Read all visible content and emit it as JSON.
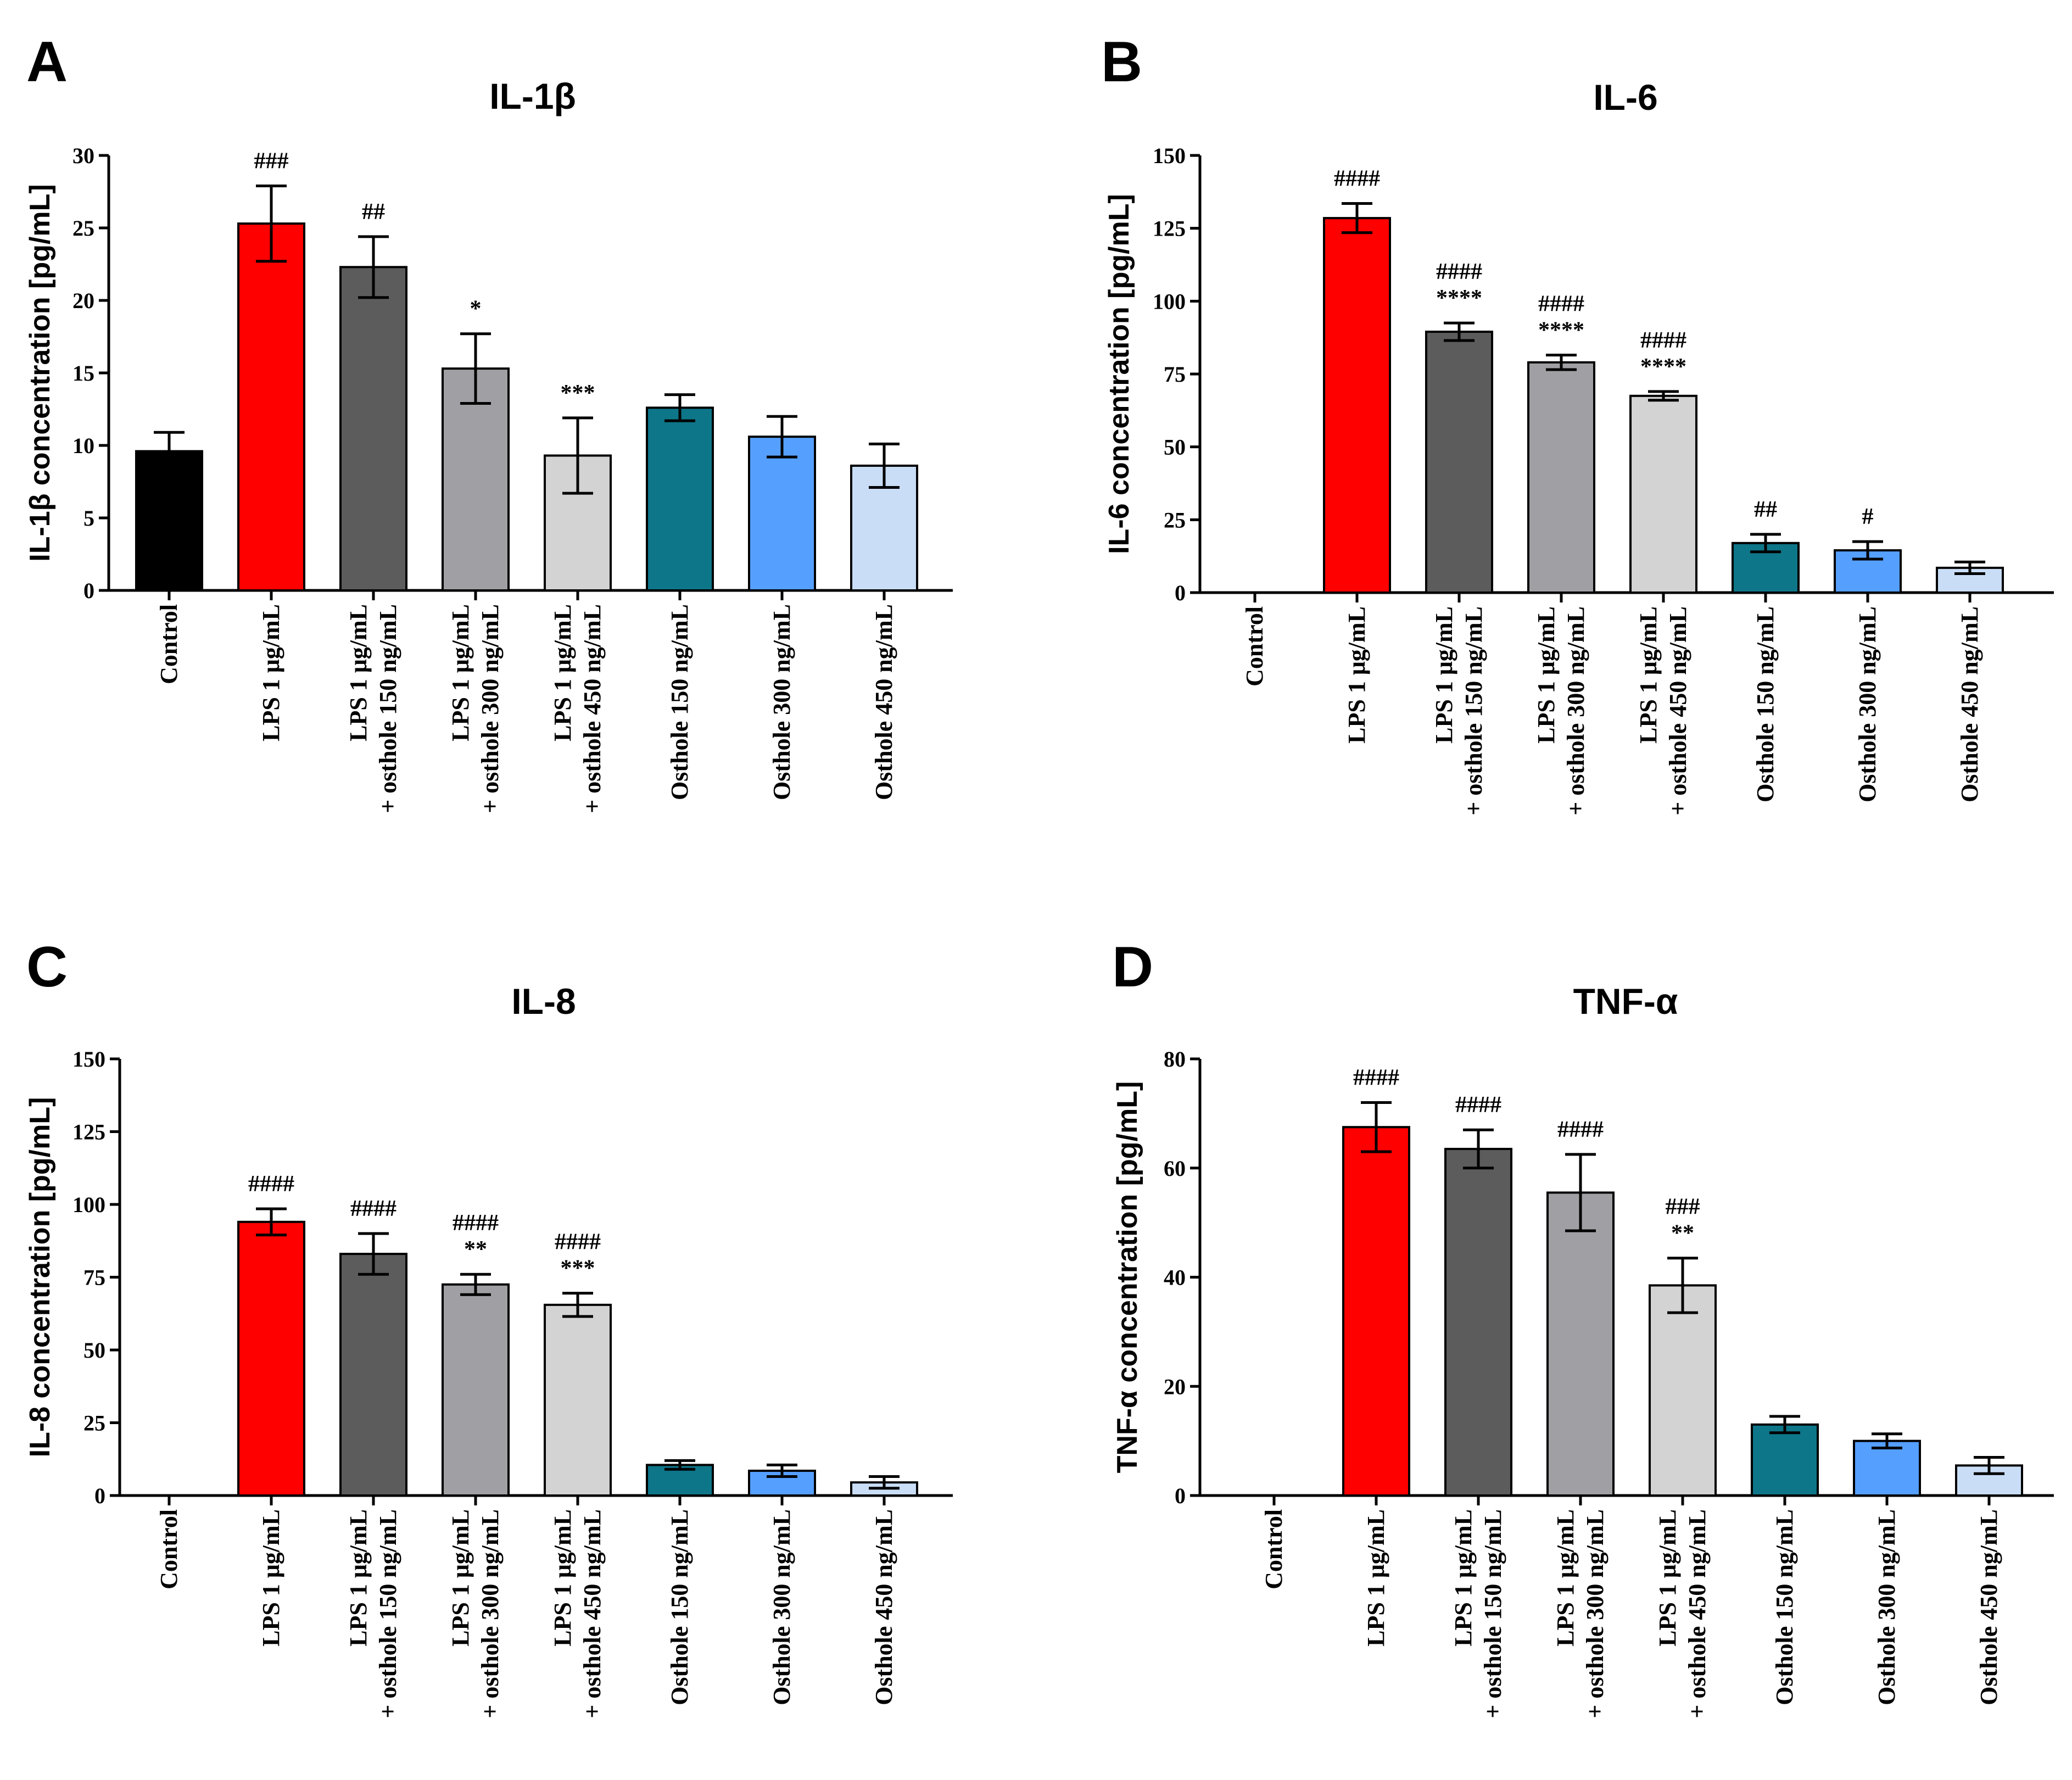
{
  "chart_data": [
    {
      "panel": "A",
      "type": "bar",
      "title": "IL-1β",
      "ylabel": "IL-1β concentration [pg/mL]",
      "xlabel": "",
      "ylim": [
        0,
        30
      ],
      "yticks": [
        0,
        5,
        10,
        15,
        20,
        25,
        30
      ],
      "categories": [
        [
          "Control"
        ],
        [
          "LPS 1 μg/mL"
        ],
        [
          "LPS 1 μg/mL",
          "+ osthole 150 ng/mL"
        ],
        [
          "LPS 1 μg/mL",
          "+ osthole 300 ng/mL"
        ],
        [
          "LPS 1 μg/mL",
          "+ osthole 450 ng/mL"
        ],
        [
          "Osthole 150 ng/mL"
        ],
        [
          "Osthole 300 ng/mL"
        ],
        [
          "Osthole 450 ng/mL"
        ]
      ],
      "values": [
        9.6,
        25.3,
        22.3,
        15.3,
        9.3,
        12.6,
        10.6,
        8.6
      ],
      "errors": [
        1.3,
        2.6,
        2.1,
        2.4,
        2.6,
        0.9,
        1.4,
        1.5
      ],
      "colors": [
        "#000000",
        "#fe0000",
        "#5c5c5c",
        "#a0a0a4",
        "#d3d3d3",
        "#0e7689",
        "#559fff",
        "#c9ddf6"
      ],
      "annotations": [
        [],
        [
          "###"
        ],
        [
          "##"
        ],
        [
          "*"
        ],
        [
          "***"
        ],
        [],
        [],
        []
      ]
    },
    {
      "panel": "B",
      "type": "bar",
      "title": "IL-6",
      "ylabel": "IL-6 concentration [pg/mL]",
      "xlabel": "",
      "ylim": [
        0,
        150
      ],
      "yticks": [
        0,
        25,
        50,
        75,
        100,
        125,
        150
      ],
      "categories": [
        [
          "Control"
        ],
        [
          "LPS 1 μg/mL"
        ],
        [
          "LPS 1 μg/mL",
          "+ osthole 150 ng/mL"
        ],
        [
          "LPS 1 μg/mL",
          "+ osthole 300 ng/mL"
        ],
        [
          "LPS 1 μg/mL",
          "+ osthole 450 ng/mL"
        ],
        [
          "Osthole 150 ng/mL"
        ],
        [
          "Osthole 300 ng/mL"
        ],
        [
          "Osthole 450 ng/mL"
        ]
      ],
      "values": [
        0,
        128.5,
        89.5,
        79,
        67.5,
        17,
        14.5,
        8.5
      ],
      "errors": [
        0,
        5,
        3,
        2.5,
        1.5,
        3,
        3,
        2
      ],
      "colors": [
        "#000000",
        "#fe0000",
        "#5c5c5c",
        "#a0a0a4",
        "#d3d3d3",
        "#0e7689",
        "#559fff",
        "#c9ddf6"
      ],
      "annotations": [
        [],
        [
          "####"
        ],
        [
          "####",
          "****"
        ],
        [
          "####",
          "****"
        ],
        [
          "####",
          "****"
        ],
        [
          "##"
        ],
        [
          "#"
        ],
        []
      ]
    },
    {
      "panel": "C",
      "type": "bar",
      "title": "IL-8",
      "ylabel": "IL-8 concentration [pg/mL]",
      "xlabel": "",
      "ylim": [
        0,
        150
      ],
      "yticks": [
        0,
        25,
        50,
        75,
        100,
        125,
        150
      ],
      "categories": [
        [
          "Control"
        ],
        [
          "LPS 1 μg/mL"
        ],
        [
          "LPS 1 μg/mL",
          "+ osthole 150 ng/mL"
        ],
        [
          "LPS 1 μg/mL",
          "+ osthole 300 ng/mL"
        ],
        [
          "LPS 1 μg/mL",
          "+ osthole 450 ng/mL"
        ],
        [
          "Osthole 150 ng/mL"
        ],
        [
          "Osthole 300 ng/mL"
        ],
        [
          "Osthole 450 ng/mL"
        ]
      ],
      "values": [
        0,
        94,
        83,
        72.5,
        65.5,
        10.5,
        8.5,
        4.5
      ],
      "errors": [
        0,
        4.5,
        7,
        3.5,
        4,
        1.5,
        2,
        2
      ],
      "colors": [
        "#000000",
        "#fe0000",
        "#5c5c5c",
        "#a0a0a4",
        "#d3d3d3",
        "#0e7689",
        "#559fff",
        "#c9ddf6"
      ],
      "annotations": [
        [],
        [
          "####"
        ],
        [
          "####"
        ],
        [
          "####",
          "**"
        ],
        [
          "####",
          "***"
        ],
        [],
        [],
        []
      ]
    },
    {
      "panel": "D",
      "type": "bar",
      "title": "TNF-α",
      "ylabel": "TNF-α concentration [pg/mL]",
      "xlabel": "",
      "ylim": [
        0,
        80
      ],
      "yticks": [
        0,
        20,
        40,
        60,
        80
      ],
      "categories": [
        [
          "Control"
        ],
        [
          "LPS 1 μg/mL"
        ],
        [
          "LPS 1 μg/mL",
          "+ osthole 150 ng/mL"
        ],
        [
          "LPS 1 μg/mL",
          "+ osthole 300 ng/mL"
        ],
        [
          "LPS 1 μg/mL",
          "+ osthole 450 ng/mL"
        ],
        [
          "Osthole 150 ng/mL"
        ],
        [
          "Osthole 300 ng/mL"
        ],
        [
          "Osthole 450 ng/mL"
        ]
      ],
      "values": [
        0,
        67.5,
        63.5,
        55.5,
        38.5,
        13,
        10,
        5.5
      ],
      "errors": [
        0,
        4.5,
        3.5,
        7,
        5,
        1.5,
        1.3,
        1.5
      ],
      "colors": [
        "#000000",
        "#fe0000",
        "#5c5c5c",
        "#a0a0a4",
        "#d3d3d3",
        "#0e7689",
        "#559fff",
        "#c9ddf6"
      ],
      "annotations": [
        [],
        [
          "####"
        ],
        [
          "####"
        ],
        [
          "####"
        ],
        [
          "###",
          "**"
        ],
        [],
        [],
        []
      ]
    }
  ]
}
